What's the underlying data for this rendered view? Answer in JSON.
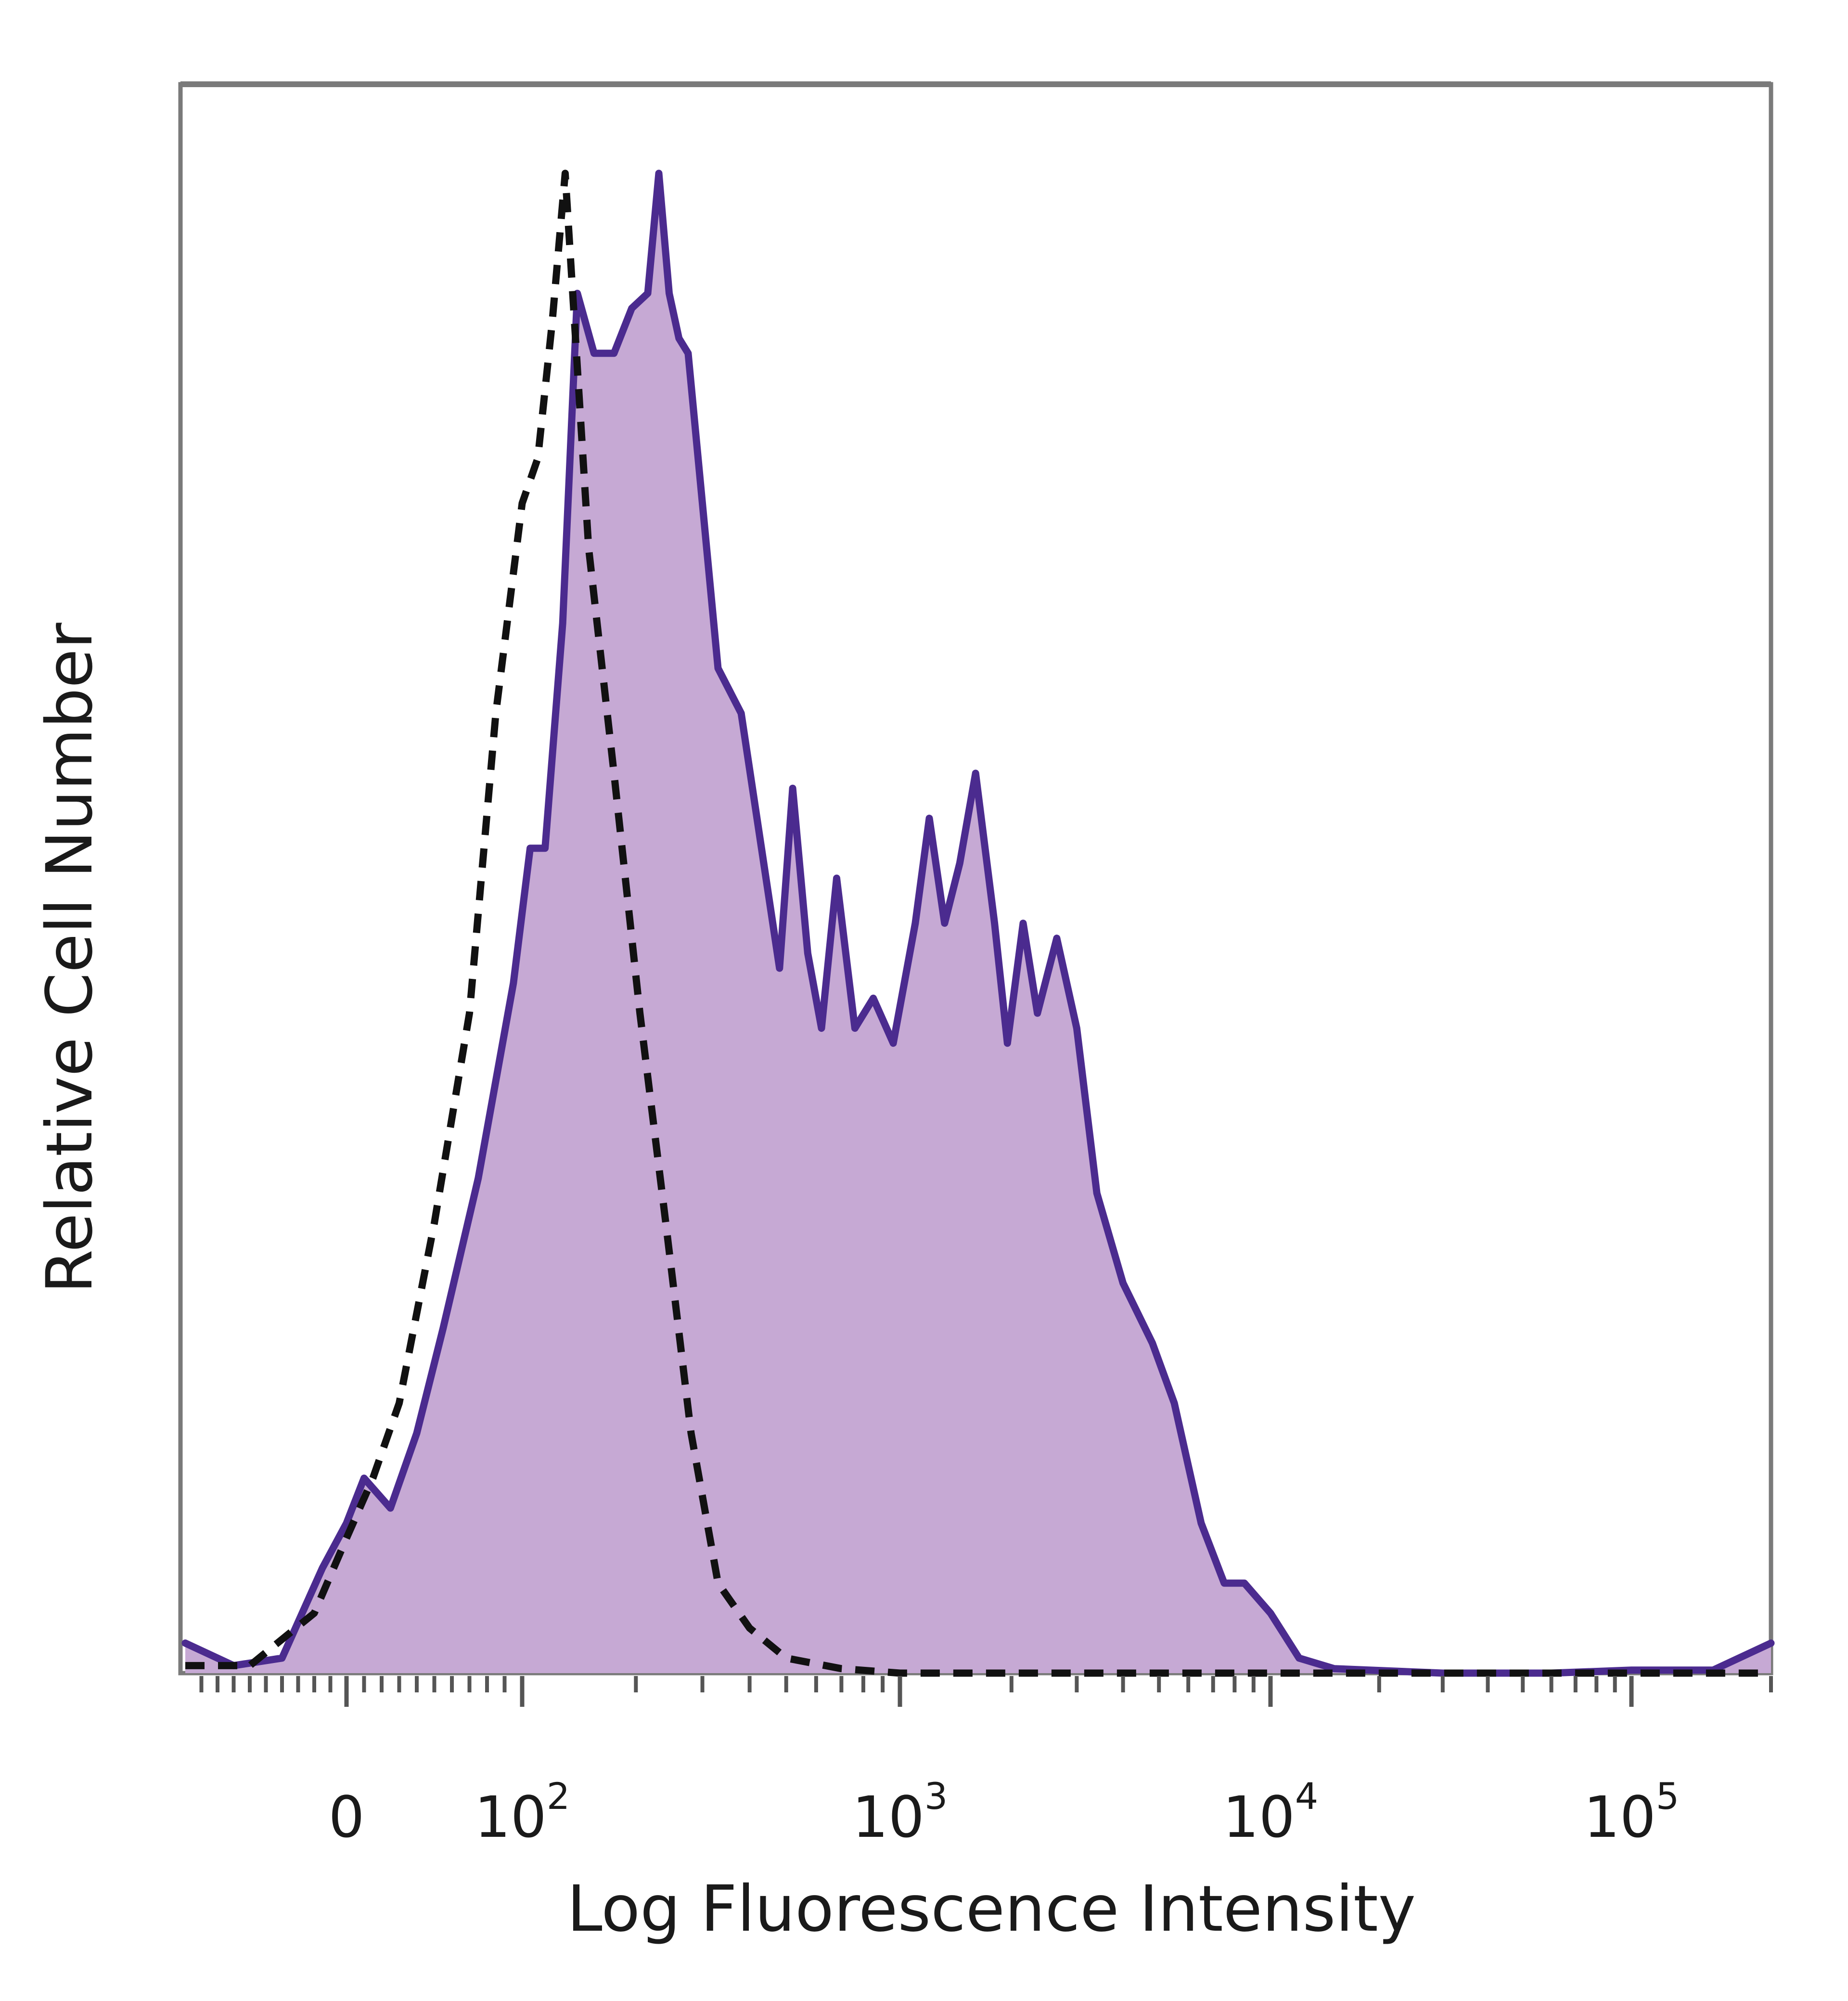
{
  "chart_data": {
    "type": "area",
    "title": "",
    "xlabel": "Log Fluorescence Intensity",
    "ylabel": "Relative Cell Number",
    "x_scale": "biexponential",
    "xlim": [
      -100,
      200000
    ],
    "ylim": [
      0,
      100
    ],
    "grid": false,
    "legend": "none",
    "x_ticks": [
      {
        "value": 0,
        "base": "0",
        "exp": ""
      },
      {
        "value": 100,
        "base": "10",
        "exp": "2"
      },
      {
        "value": 1000,
        "base": "10",
        "exp": "3"
      },
      {
        "value": 10000,
        "base": "10",
        "exp": "4"
      },
      {
        "value": 100000,
        "base": "10",
        "exp": "5"
      }
    ],
    "series": [
      {
        "style": "filled-solid",
        "line_color": "#4b2b8f",
        "fill_color": "#c6a9d4",
        "points": [
          [
            -100,
            2
          ],
          [
            -70,
            0.5
          ],
          [
            -40,
            1
          ],
          [
            -15,
            7
          ],
          [
            0,
            10
          ],
          [
            10,
            13
          ],
          [
            25,
            11
          ],
          [
            40,
            16
          ],
          [
            55,
            23
          ],
          [
            75,
            33
          ],
          [
            95,
            46
          ],
          [
            105,
            55
          ],
          [
            115,
            55
          ],
          [
            128,
            70
          ],
          [
            140,
            92
          ],
          [
            155,
            88
          ],
          [
            175,
            88
          ],
          [
            195,
            91
          ],
          [
            215,
            92
          ],
          [
            230,
            100
          ],
          [
            245,
            92
          ],
          [
            260,
            89
          ],
          [
            275,
            88
          ],
          [
            300,
            78
          ],
          [
            330,
            67
          ],
          [
            380,
            64
          ],
          [
            430,
            55
          ],
          [
            480,
            47
          ],
          [
            520,
            59
          ],
          [
            570,
            48
          ],
          [
            620,
            43
          ],
          [
            680,
            53
          ],
          [
            760,
            43
          ],
          [
            850,
            45
          ],
          [
            960,
            42
          ],
          [
            1100,
            50
          ],
          [
            1200,
            57
          ],
          [
            1320,
            50
          ],
          [
            1450,
            54
          ],
          [
            1600,
            60
          ],
          [
            1800,
            50
          ],
          [
            1950,
            42
          ],
          [
            2150,
            50
          ],
          [
            2350,
            44
          ],
          [
            2650,
            49
          ],
          [
            3000,
            43
          ],
          [
            3400,
            32
          ],
          [
            4000,
            26
          ],
          [
            4800,
            22
          ],
          [
            5500,
            18
          ],
          [
            6500,
            10
          ],
          [
            7500,
            6
          ],
          [
            8500,
            6
          ],
          [
            10000,
            4
          ],
          [
            12000,
            1
          ],
          [
            15000,
            0.3
          ],
          [
            30000,
            0
          ],
          [
            60000,
            0
          ],
          [
            100000,
            0.2
          ],
          [
            150000,
            0.2
          ],
          [
            200000,
            2
          ]
        ]
      },
      {
        "style": "dashed",
        "line_color": "#111111",
        "points": [
          [
            -100,
            0.5
          ],
          [
            -60,
            0.5
          ],
          [
            -20,
            4
          ],
          [
            0,
            9
          ],
          [
            15,
            13
          ],
          [
            30,
            18
          ],
          [
            50,
            30
          ],
          [
            70,
            44
          ],
          [
            85,
            64
          ],
          [
            100,
            78
          ],
          [
            110,
            81
          ],
          [
            120,
            90
          ],
          [
            130,
            100
          ],
          [
            150,
            75
          ],
          [
            175,
            60
          ],
          [
            205,
            44
          ],
          [
            240,
            30
          ],
          [
            280,
            16
          ],
          [
            330,
            6
          ],
          [
            400,
            3
          ],
          [
            500,
            1
          ],
          [
            700,
            0.3
          ],
          [
            1000,
            0
          ],
          [
            10000,
            0
          ],
          [
            100000,
            0
          ],
          [
            200000,
            0
          ]
        ]
      }
    ]
  }
}
